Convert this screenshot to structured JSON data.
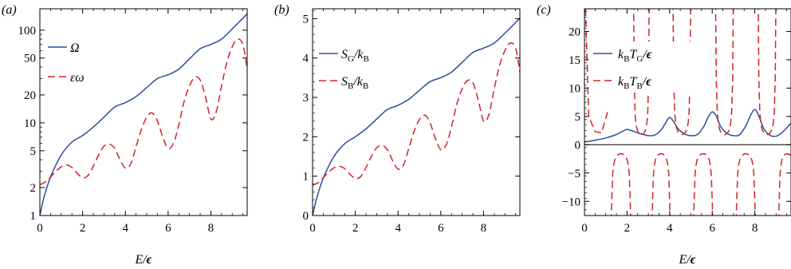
{
  "colors": {
    "blue": "#2b4f9a",
    "red": "#d2232a"
  },
  "chart_data": [
    {
      "type": "line",
      "panel_label": "(a)",
      "xlabel": "E/ε",
      "ylabel": "",
      "xlim": [
        0,
        9.7
      ],
      "ylim": [
        1,
        170
      ],
      "yscale": "log",
      "xticks": [
        0,
        2,
        4,
        6,
        8
      ],
      "yticks": [
        1,
        2,
        5,
        10,
        20,
        50,
        100
      ],
      "legend_position": "top-left",
      "series": [
        {
          "name": "Ω",
          "style": "solid",
          "color": "blue",
          "x": [
            0,
            0.2,
            0.5,
            1,
            1.5,
            2,
            2.5,
            3,
            3.5,
            4,
            4.5,
            5,
            5.5,
            6,
            6.5,
            7,
            7.5,
            8,
            8.5,
            9,
            9.7
          ],
          "y": [
            1,
            1.6,
            2.6,
            4.5,
            6.2,
            7.3,
            9.0,
            11.5,
            14.8,
            16.5,
            19.2,
            24.0,
            30.0,
            33.0,
            38.0,
            49.0,
            63.0,
            70.0,
            80.0,
            103.0,
            150.0
          ]
        },
        {
          "name": "εω",
          "style": "dashed",
          "color": "red",
          "x": [
            0,
            0.25,
            0.5,
            0.75,
            1,
            1.25,
            1.5,
            1.75,
            2,
            2.25,
            2.5,
            2.75,
            3,
            3.25,
            3.5,
            3.75,
            4,
            4.25,
            4.5,
            4.75,
            5,
            5.25,
            5.5,
            5.75,
            6,
            6.25,
            6.5,
            6.75,
            7,
            7.25,
            7.5,
            7.75,
            8,
            8.25,
            8.5,
            8.75,
            9,
            9.25,
            9.5,
            9.7
          ],
          "y": [
            2.15,
            2.3,
            2.6,
            3.0,
            3.35,
            3.5,
            3.3,
            2.85,
            2.55,
            2.7,
            3.4,
            4.5,
            5.6,
            5.9,
            5.3,
            4.0,
            3.25,
            3.6,
            5.5,
            8.5,
            11.5,
            12.8,
            10.5,
            7.0,
            5.3,
            6.0,
            9.5,
            17.0,
            25.0,
            31.0,
            29.0,
            19.0,
            11.0,
            13.0,
            25.0,
            45.0,
            66.0,
            80.0,
            70.0,
            38.0
          ]
        }
      ]
    },
    {
      "type": "line",
      "panel_label": "(b)",
      "xlabel": "",
      "ylabel": "",
      "xlim": [
        0,
        9.7
      ],
      "ylim": [
        0,
        5.25
      ],
      "xticks": [
        0,
        2,
        4,
        6,
        8
      ],
      "yticks": [
        0,
        1,
        2,
        3,
        4,
        5
      ],
      "legend_position": "top-left",
      "series": [
        {
          "name": "S_G/k_B",
          "style": "solid",
          "color": "blue",
          "x": [
            0,
            0.2,
            0.5,
            1,
            1.5,
            2,
            2.5,
            3,
            3.5,
            4,
            4.5,
            5,
            5.5,
            6,
            6.5,
            7,
            7.5,
            8,
            8.5,
            9,
            9.7
          ],
          "y": [
            0,
            0.45,
            0.95,
            1.5,
            1.82,
            2.0,
            2.2,
            2.45,
            2.69,
            2.8,
            2.95,
            3.18,
            3.4,
            3.5,
            3.64,
            3.89,
            4.14,
            4.25,
            4.38,
            4.63,
            5.01
          ]
        },
        {
          "name": "S_B/k_B",
          "style": "dashed",
          "color": "red",
          "x": [
            0,
            0.25,
            0.5,
            0.75,
            1,
            1.25,
            1.5,
            1.75,
            2,
            2.25,
            2.5,
            2.75,
            3,
            3.25,
            3.5,
            3.75,
            4,
            4.25,
            4.5,
            4.75,
            5,
            5.25,
            5.5,
            5.75,
            6,
            6.25,
            6.5,
            6.75,
            7,
            7.25,
            7.5,
            7.75,
            8,
            8.25,
            8.5,
            8.75,
            9,
            9.25,
            9.5,
            9.7
          ],
          "y": [
            0.77,
            0.83,
            0.96,
            1.1,
            1.21,
            1.25,
            1.19,
            1.05,
            0.94,
            0.99,
            1.22,
            1.5,
            1.72,
            1.78,
            1.67,
            1.39,
            1.18,
            1.28,
            1.7,
            2.14,
            2.44,
            2.55,
            2.35,
            1.95,
            1.67,
            1.79,
            2.25,
            2.83,
            3.22,
            3.43,
            3.37,
            2.94,
            2.4,
            2.56,
            3.22,
            3.81,
            4.19,
            4.38,
            4.25,
            3.64
          ]
        }
      ]
    },
    {
      "type": "line",
      "panel_label": "(c)",
      "xlabel": "E/ε",
      "ylabel": "",
      "xlim": [
        0,
        9.7
      ],
      "ylim": [
        -12.5,
        24
      ],
      "xticks": [
        0,
        2,
        4,
        6,
        8
      ],
      "yticks": [
        -10,
        -5,
        0,
        5,
        10,
        15,
        20
      ],
      "legend_position": "top-right",
      "series": [
        {
          "name": "k_B T_G/ε",
          "style": "solid",
          "color": "blue",
          "x": [
            0,
            0.5,
            1,
            1.5,
            1.8,
            2,
            2.2,
            2.5,
            3,
            3.3,
            3.6,
            3.8,
            4,
            4.2,
            4.4,
            4.7,
            5,
            5.3,
            5.6,
            5.8,
            6,
            6.2,
            6.4,
            6.7,
            7,
            7.3,
            7.6,
            7.8,
            8,
            8.2,
            8.4,
            8.7,
            9,
            9.3,
            9.7
          ],
          "y": [
            0.5,
            0.8,
            1.2,
            1.8,
            2.4,
            2.7,
            2.5,
            2.1,
            1.6,
            1.7,
            2.6,
            3.8,
            4.8,
            4.0,
            2.8,
            1.9,
            1.6,
            1.8,
            3.2,
            4.8,
            5.8,
            5.0,
            3.2,
            2.0,
            1.6,
            1.8,
            3.5,
            5.2,
            6.2,
            5.0,
            3.0,
            1.7,
            1.5,
            2.2,
            3.8
          ]
        },
        {
          "name": "k_B T_B/ε",
          "style": "dashed",
          "color": "red",
          "poles": [
            1.18,
            2.25,
            3.1,
            4.1,
            5.05,
            6.1,
            7.05,
            8.1,
            9.05
          ],
          "x": [
            0.05,
            0.2,
            0.5,
            0.8,
            1.1
          ],
          "y": [
            24,
            5.0,
            2.3,
            2.1,
            6.0
          ]
        }
      ]
    }
  ]
}
